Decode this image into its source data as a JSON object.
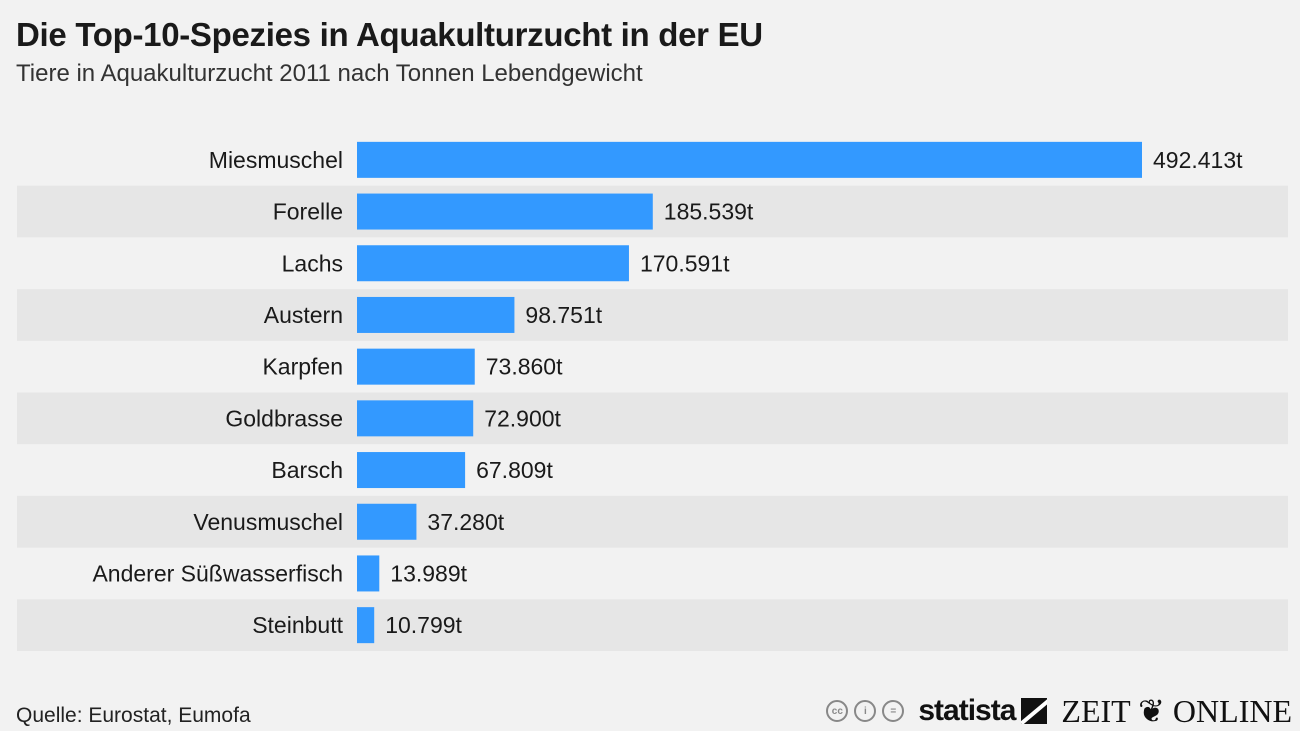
{
  "chart_data": {
    "type": "bar",
    "orientation": "horizontal",
    "title": "Die Top-10-Spezies in Aquakulturzucht in der EU",
    "subtitle": "Tiere in Aquakulturzucht 2011 nach Tonnen Lebendgewicht",
    "xlabel": "",
    "ylabel": "",
    "unit": "t",
    "categories": [
      "Miesmuschel",
      "Forelle",
      "Lachs",
      "Austern",
      "Karpfen",
      "Goldbrasse",
      "Barsch",
      "Venusmuschel",
      "Anderer Süßwasserfisch",
      "Steinbutt"
    ],
    "values": [
      492413,
      185539,
      170591,
      98751,
      73860,
      72900,
      67809,
      37280,
      13989,
      10799
    ],
    "value_labels": [
      "492.413t",
      "185.539t",
      "170.591t",
      "98.751t",
      "73.860t",
      "72.900t",
      "67.809t",
      "37.280t",
      "13.989t",
      "10.799t"
    ],
    "xlim": [
      0,
      492413
    ],
    "grid": false,
    "legend": "none",
    "bar_color": "#3399ff",
    "stripe_color": "#e6e6e6"
  },
  "source": "Quelle: Eurostat, Eumofa",
  "footer": {
    "cc_icons": [
      "cc-icon",
      "by-icon",
      "nd-icon"
    ],
    "cc_glyphs": [
      "cc",
      "i",
      "="
    ],
    "statista": "statista",
    "zeit": "ZEIT ❦ ONLINE"
  }
}
